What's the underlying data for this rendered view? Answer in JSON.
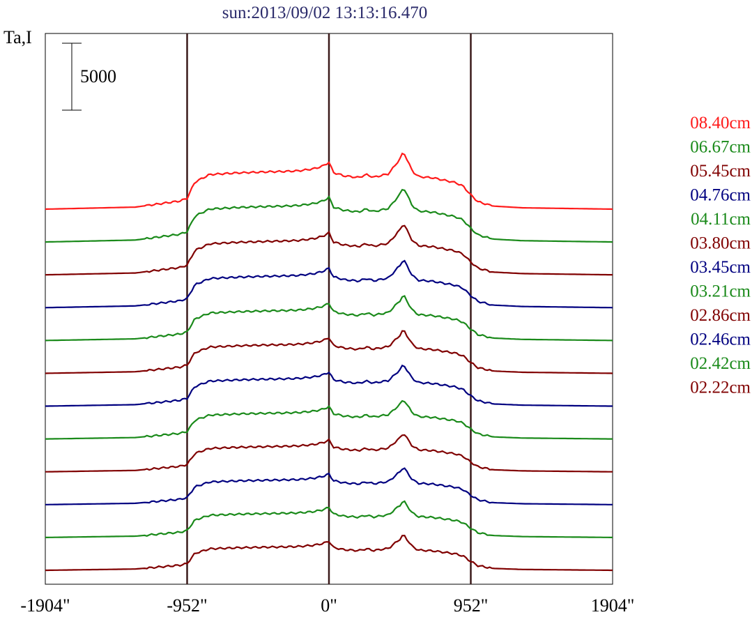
{
  "chart_data": {
    "type": "line",
    "title": "sun:2013/09/02 13:13:16.470",
    "ylabel": "Ta,I",
    "xlabel": "",
    "x_range": [
      -1904,
      1904
    ],
    "x_ticks": [
      {
        "value": -1904,
        "label": "-1904\""
      },
      {
        "value": -952,
        "label": "-952\""
      },
      {
        "value": 0,
        "label": "0\""
      },
      {
        "value": 952,
        "label": "952\""
      },
      {
        "value": 1904,
        "label": "1904\""
      }
    ],
    "vertical_markers": [
      -952,
      0,
      952
    ],
    "scale_bar": {
      "value": 5000,
      "label": "5000"
    },
    "profile_shape": {
      "x": [
        -1904,
        -1300,
        -1000,
        -952,
        -900,
        -800,
        -600,
        -400,
        -300,
        -200,
        -100,
        -40,
        0,
        30,
        100,
        200,
        250,
        300,
        400,
        480,
        500,
        520,
        560,
        600,
        700,
        850,
        900,
        952,
        1000,
        1100,
        1300,
        1904
      ],
      "values": [
        0,
        300,
        1200,
        1600,
        4000,
        5100,
        5350,
        5500,
        5550,
        5650,
        5950,
        6350,
        6900,
        5400,
        4900,
        4650,
        5100,
        4700,
        5200,
        7500,
        8500,
        7500,
        5600,
        4800,
        4600,
        3900,
        3400,
        2100,
        1100,
        450,
        200,
        0
      ]
    },
    "series": [
      {
        "name": "08.40cm",
        "color": "#ff1a1a",
        "baseline": 0,
        "amplitude": 1.45
      },
      {
        "name": "06.67cm",
        "color": "#1a8a1a",
        "baseline": 0,
        "amplitude": 1.38
      },
      {
        "name": "05.45cm",
        "color": "#800000",
        "baseline": 0,
        "amplitude": 1.3
      },
      {
        "name": "04.76cm",
        "color": "#000080",
        "baseline": 0,
        "amplitude": 1.22
      },
      {
        "name": "04.11cm",
        "color": "#1a8a1a",
        "baseline": 0,
        "amplitude": 1.15
      },
      {
        "name": "03.80cm",
        "color": "#800000",
        "baseline": 0,
        "amplitude": 1.1
      },
      {
        "name": "03.45cm",
        "color": "#000080",
        "baseline": 0,
        "amplitude": 1.05
      },
      {
        "name": "03.21cm",
        "color": "#1a8a1a",
        "baseline": 0,
        "amplitude": 1.0
      },
      {
        "name": "02.86cm",
        "color": "#800000",
        "baseline": 0,
        "amplitude": 0.98
      },
      {
        "name": "02.46cm",
        "color": "#000080",
        "baseline": 0,
        "amplitude": 0.95
      },
      {
        "name": "02.42cm",
        "color": "#1a8a1a",
        "baseline": 0,
        "amplitude": 0.93
      },
      {
        "name": "02.22cm",
        "color": "#800000",
        "baseline": 0,
        "amplitude": 0.9
      }
    ],
    "grid": false,
    "legend_placement": "right"
  }
}
